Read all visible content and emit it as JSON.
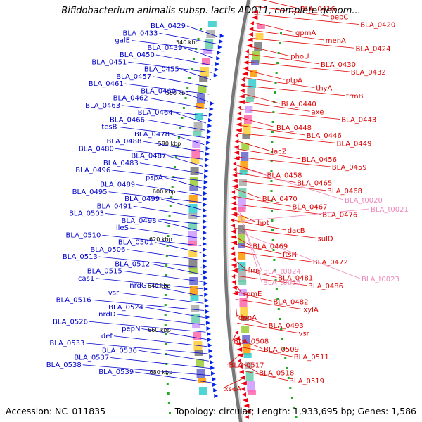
{
  "title": "Bifidobacterium animalis subsp. lactis AD011, complete genom...",
  "footer": {
    "accession": "Accession: NC_011835",
    "summary": "Topology: circular; Length: 1,933,695 bp; Genes: 1,586"
  },
  "colors": {
    "left_label": "#0000cc",
    "right_label": "#dd0000",
    "rna_label": "#ee88bb",
    "backbone_dark": "#777777",
    "backbone_light": "#dddddd",
    "tick_dot": "#22aa22",
    "forward_feature": "#0022ee",
    "reverse_feature": "#ee0011"
  },
  "ticks": [
    "540 kbp",
    "560 kbp",
    "580 kbp",
    "600 kbp",
    "620 kbp",
    "640 kbp",
    "660 kbp",
    "680 kbp"
  ],
  "left_labels": [
    "BLA_0429",
    "BLA_0433",
    "galE",
    "BLA_0439",
    "BLA_0450",
    "BLA_0451",
    "BLA_0455",
    "BLA_0457",
    "BLA_0461",
    "BLA_0460",
    "BLA_0462",
    "BLA_0463",
    "BLA_0464",
    "BLA_0466",
    "tesB",
    "BLA_0478",
    "BLA_0488",
    "BLA_0480",
    "BLA_0487",
    "BLA_0483",
    "BLA_0496",
    "pspA",
    "BLA_0489",
    "BLA_0495",
    "BLA_0499",
    "BLA_0491",
    "BLA_0503",
    "BLA_0498",
    "ileS",
    "BLA_0510",
    "BLA_0501",
    "BLA_0506",
    "BLA_0513",
    "BLA_0512",
    "BLA_0515",
    "cas1",
    "nrdG",
    "vsr",
    "BLA_0516",
    "BLA_0524",
    "nrdD",
    "BLA_0526",
    "pepN",
    "def",
    "BLA_0533",
    "BLA_0536",
    "BLA_0537",
    "BLA_0538",
    "BLA_0539"
  ],
  "right_labels": [
    "BLA_0416",
    "pepC",
    "BLA_0420",
    "gpmA",
    "menA",
    "BLA_0424",
    "phoU",
    "BLA_0430",
    "BLA_0432",
    "ptpA",
    "thyA",
    "trmB",
    "BLA_0440",
    "axe",
    "BLA_0443",
    "BLA_0448",
    "BLA_0446",
    "BLA_0449",
    "lacZ",
    "BLA_0456",
    "BLA_0459",
    "BLA_0458",
    "BLA_0465",
    "BLA_0468",
    "BLA_0470",
    "BLA_0467",
    "BLA_0476",
    "hpt",
    "dacB",
    "sulD",
    "BLA_0469",
    "ftsH",
    "BLA_0472",
    "fms",
    "BLA_0481",
    "BLA_0486",
    "rpmE",
    "BLA_0482",
    "xylA",
    "dppA",
    "BLA_0493",
    "vsr",
    "BLA_0508",
    "BLA_0509",
    "BLA_0511",
    "BLA_0517",
    "BLA_0518",
    "BLA_0519",
    "xseA"
  ],
  "rna_labels": [
    "BLA_t0020",
    "BLA_t0021",
    "BLA_t0024",
    "BLA_t0025",
    "BLA_t0023"
  ]
}
